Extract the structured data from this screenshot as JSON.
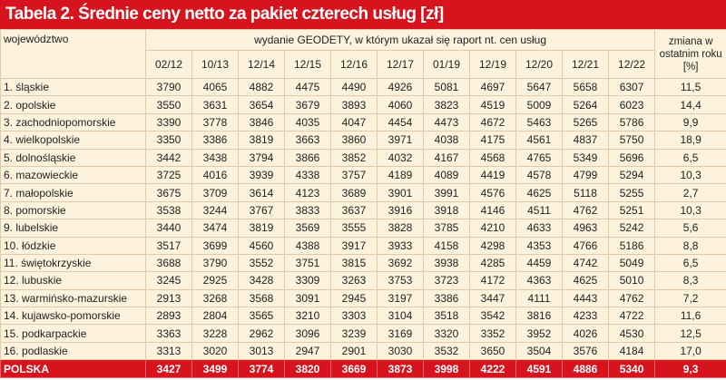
{
  "title": "Tabela 2. Średnie ceny netto za pakiet czterech usług [zł]",
  "header": {
    "region": "województwo",
    "editions": "wydanie GEODETY, w którym ukazał się raport nt. cen usług",
    "change": "zmiana w ostatnim roku [%]",
    "columns": [
      "02/12",
      "10/13",
      "12/14",
      "12/15",
      "12/16",
      "12/17",
      "01/19",
      "12/19",
      "12/20",
      "12/21",
      "12/22"
    ]
  },
  "table": {
    "rows": [
      [
        "1. śląskie",
        3790,
        4065,
        4882,
        4475,
        4490,
        4926,
        5081,
        4697,
        5647,
        5658,
        6307,
        "11,5"
      ],
      [
        "2. opolskie",
        3550,
        3631,
        3654,
        3679,
        3893,
        4060,
        3823,
        4519,
        5009,
        5264,
        6023,
        "14,4"
      ],
      [
        "3. zachodniopomorskie",
        3390,
        3778,
        3846,
        4035,
        4047,
        4454,
        4473,
        4672,
        5463,
        5265,
        5786,
        "9,9"
      ],
      [
        "4. wielkopolskie",
        3350,
        3386,
        3819,
        3663,
        3860,
        3971,
        4038,
        4175,
        4561,
        4837,
        5750,
        "18,9"
      ],
      [
        "5. dolnośląskie",
        3442,
        3438,
        3794,
        3866,
        3852,
        4032,
        4167,
        4568,
        4765,
        5349,
        5696,
        "6,5"
      ],
      [
        "6. mazowieckie",
        3725,
        4016,
        3939,
        4338,
        3757,
        4189,
        4089,
        4419,
        4578,
        4799,
        5294,
        "10,3"
      ],
      [
        "7. małopolskie",
        3675,
        3709,
        3614,
        4123,
        3689,
        3901,
        3991,
        4576,
        4625,
        5118,
        5255,
        "2,7"
      ],
      [
        "8. pomorskie",
        3538,
        3244,
        3767,
        3833,
        3637,
        3916,
        3918,
        4146,
        4511,
        4762,
        5251,
        "10,3"
      ],
      [
        "9. lubelskie",
        3440,
        3474,
        3819,
        3569,
        3555,
        3828,
        3785,
        4210,
        4633,
        4963,
        5242,
        "5,6"
      ],
      [
        "10. łódzkie",
        3517,
        3699,
        4560,
        4388,
        3917,
        3933,
        4158,
        4298,
        4353,
        4766,
        5186,
        "8,8"
      ],
      [
        "11. świętokrzyskie",
        3688,
        3790,
        3552,
        3751,
        3815,
        3692,
        3938,
        4285,
        4459,
        4742,
        5049,
        "6,5"
      ],
      [
        "12. lubuskie",
        3245,
        2925,
        3428,
        3309,
        3263,
        3753,
        3723,
        4172,
        4363,
        4625,
        5010,
        "8,3"
      ],
      [
        "13. warmińsko-mazurskie",
        2913,
        3268,
        3568,
        3091,
        2945,
        3197,
        3386,
        3447,
        4111,
        4443,
        4762,
        "7,2"
      ],
      [
        "14. kujawsko-pomorskie",
        2893,
        2804,
        3565,
        3210,
        3303,
        3104,
        3518,
        3542,
        3816,
        4233,
        4722,
        "11,6"
      ],
      [
        "15. podkarpackie",
        3363,
        3228,
        2962,
        3096,
        3239,
        3169,
        3320,
        3352,
        3952,
        4026,
        4530,
        "12,5"
      ],
      [
        "16. podlaskie",
        3313,
        3020,
        3013,
        2947,
        2901,
        3030,
        3532,
        3650,
        3504,
        3576,
        4184,
        "17,0"
      ]
    ],
    "total": [
      "POLSKA",
      3427,
      3499,
      3774,
      3820,
      3669,
      3873,
      3998,
      4222,
      4591,
      4886,
      5340,
      "9,3"
    ]
  }
}
